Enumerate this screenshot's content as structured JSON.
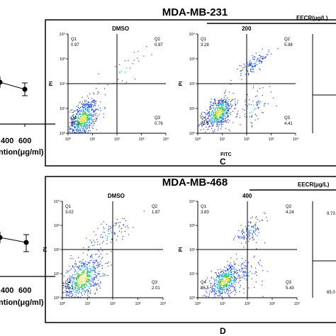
{
  "left_strip": {
    "top": {
      "tick_labels": [
        "400",
        "600"
      ],
      "xlabel": "ntion(μg/ml)",
      "points": [
        {
          "x": 400,
          "y": 0.8,
          "err": 0.15
        },
        {
          "x": 600,
          "y": 0.55,
          "err": 0.15
        }
      ]
    },
    "bottom": {
      "tick_labels": [
        "400",
        "600"
      ],
      "xlabel": "ntion(μg/ml)",
      "points": [
        {
          "x": 400,
          "y": 0.8,
          "err": 0.15
        },
        {
          "x": 600,
          "y": 0.6,
          "err": 0.2
        }
      ]
    }
  },
  "chart_data": [
    {
      "type": "scatter",
      "title": "MDA-MB-231",
      "panel_label": "C",
      "treatment_label": "EECR(μg/L)",
      "xlabel": "FITC",
      "ylabel": "PI",
      "x_scale": "log",
      "y_scale": "log",
      "xlim": [
        1,
        10000
      ],
      "ylim": [
        1,
        10000
      ],
      "x_tick_labels": [
        "10⁰",
        "10¹",
        "10²",
        "10³",
        "10⁴"
      ],
      "y_tick_labels": [
        "10⁰",
        "10¹",
        "10²",
        "10³",
        "10⁴"
      ],
      "quadrant_labels": [
        "Q1",
        "Q2",
        "Q3",
        "Q4"
      ],
      "plots": [
        {
          "name": "DMSO",
          "quadrants": {
            "Q1": "0.97",
            "Q2": "0.97",
            "Q3": "0.76",
            "Q4": "97.3"
          },
          "clusters": [
            {
              "cx": 4,
              "cy": 4,
              "sx": 0.3,
              "sy": 0.35,
              "n": 650
            },
            {
              "cx": 150,
              "cy": 300,
              "sx": 0.5,
              "sy": 0.3,
              "n": 30
            }
          ]
        },
        {
          "name": "200",
          "quadrants": {
            "Q1": "3.28",
            "Q2": "5.98",
            "Q3": "4.41",
            "Q4": "86.3"
          },
          "clusters": [
            {
              "cx": 7,
              "cy": 7,
              "sx": 0.3,
              "sy": 0.3,
              "n": 550
            },
            {
              "cx": 200,
              "cy": 700,
              "sx": 0.3,
              "sy": 0.15,
              "n": 120
            },
            {
              "cx": 150,
              "cy": 10,
              "sx": 0.45,
              "sy": 0.35,
              "n": 80
            }
          ]
        }
      ]
    },
    {
      "type": "scatter",
      "title": "MDA-MB-468",
      "panel_label": "D",
      "treatment_label": "EECR(μg/L)",
      "xlabel": "",
      "ylabel": "PI",
      "x_scale": "log",
      "y_scale": "log",
      "xlim": [
        1,
        10000
      ],
      "ylim": [
        1,
        10000
      ],
      "x_tick_labels": [
        "10⁰",
        "10¹",
        "10²",
        "10³",
        "10⁴"
      ],
      "y_tick_labels": [
        "10⁰",
        "10¹",
        "10²",
        "10³",
        "10⁴"
      ],
      "quadrant_labels": [
        "Q1",
        "Q2",
        "Q3",
        "Q4"
      ],
      "plots": [
        {
          "name": "DMSO",
          "quadrants": {
            "Q1": "3.02",
            "Q2": "1.87",
            "Q3": "2.01",
            "Q4": "93.1"
          },
          "clusters": [
            {
              "cx": 6,
              "cy": 6,
              "sx": 0.4,
              "sy": 0.45,
              "n": 650
            },
            {
              "cx": 70,
              "cy": 500,
              "sx": 0.5,
              "sy": 0.25,
              "n": 90
            }
          ]
        },
        {
          "name": "400",
          "quadrants": {
            "Q1": "3.83",
            "Q2": "4.24",
            "Q3": "5.43",
            "Q4": "86.5"
          },
          "clusters": [
            {
              "cx": 12,
              "cy": 5,
              "sx": 0.35,
              "sy": 0.3,
              "n": 550
            },
            {
              "cx": 120,
              "cy": 600,
              "sx": 0.3,
              "sy": 0.2,
              "n": 110
            },
            {
              "cx": 90,
              "cy": 8,
              "sx": 0.4,
              "sy": 0.35,
              "n": 70
            }
          ]
        }
      ]
    }
  ],
  "cropped_right_quadrant_values": [
    "9.73",
    "65.0"
  ]
}
